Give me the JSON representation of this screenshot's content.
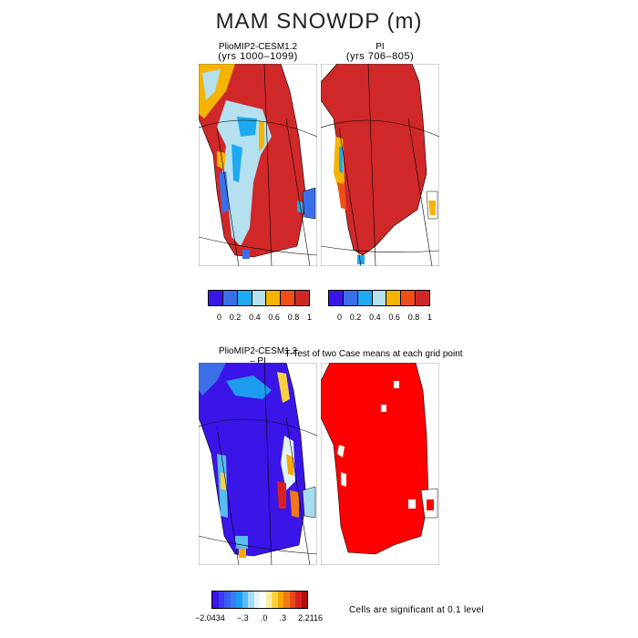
{
  "title": "MAM SNOWDP (m)",
  "panels": {
    "top_left": {
      "name": "PlioMIP2-CESM1.2",
      "years": "(yrs 1000–1099)"
    },
    "top_right": {
      "name": "PI",
      "years": "(yrs 706–805)"
    },
    "bottom_left": {
      "name": "PlioMIP2-CESM1.2",
      "sub": "– PI"
    },
    "bottom_right": {
      "name": "T-Test of two Case means at each grid point"
    }
  },
  "colorbars": {
    "abs": {
      "colors": [
        "#3b14e8",
        "#3b6fe8",
        "#1eaaf0",
        "#b4e0f0",
        "#f5b400",
        "#f05018",
        "#d02828"
      ],
      "ticks": [
        "0",
        "0.2",
        "0.4",
        "0.6",
        "0.8",
        "1"
      ]
    },
    "diff": {
      "colors": [
        "#3b14e8",
        "#3b3cf0",
        "#3b5cf0",
        "#3b7cf0",
        "#1e9cf0",
        "#58bcf0",
        "#a8dcf0",
        "#e0f4f8",
        "#ffffff",
        "#f8f0a8",
        "#f8d040",
        "#f8a800",
        "#f07818",
        "#e84818",
        "#d82020",
        "#b01010"
      ],
      "ticks": [
        "−2.0434",
        "−.3",
        ".0",
        ".3",
        "2.2116"
      ]
    }
  },
  "note": "Cells are significant at 0.1 level",
  "map_colors": {
    "land_outline": "#000000",
    "grid": "#000000",
    "significant": "#ff0000"
  }
}
